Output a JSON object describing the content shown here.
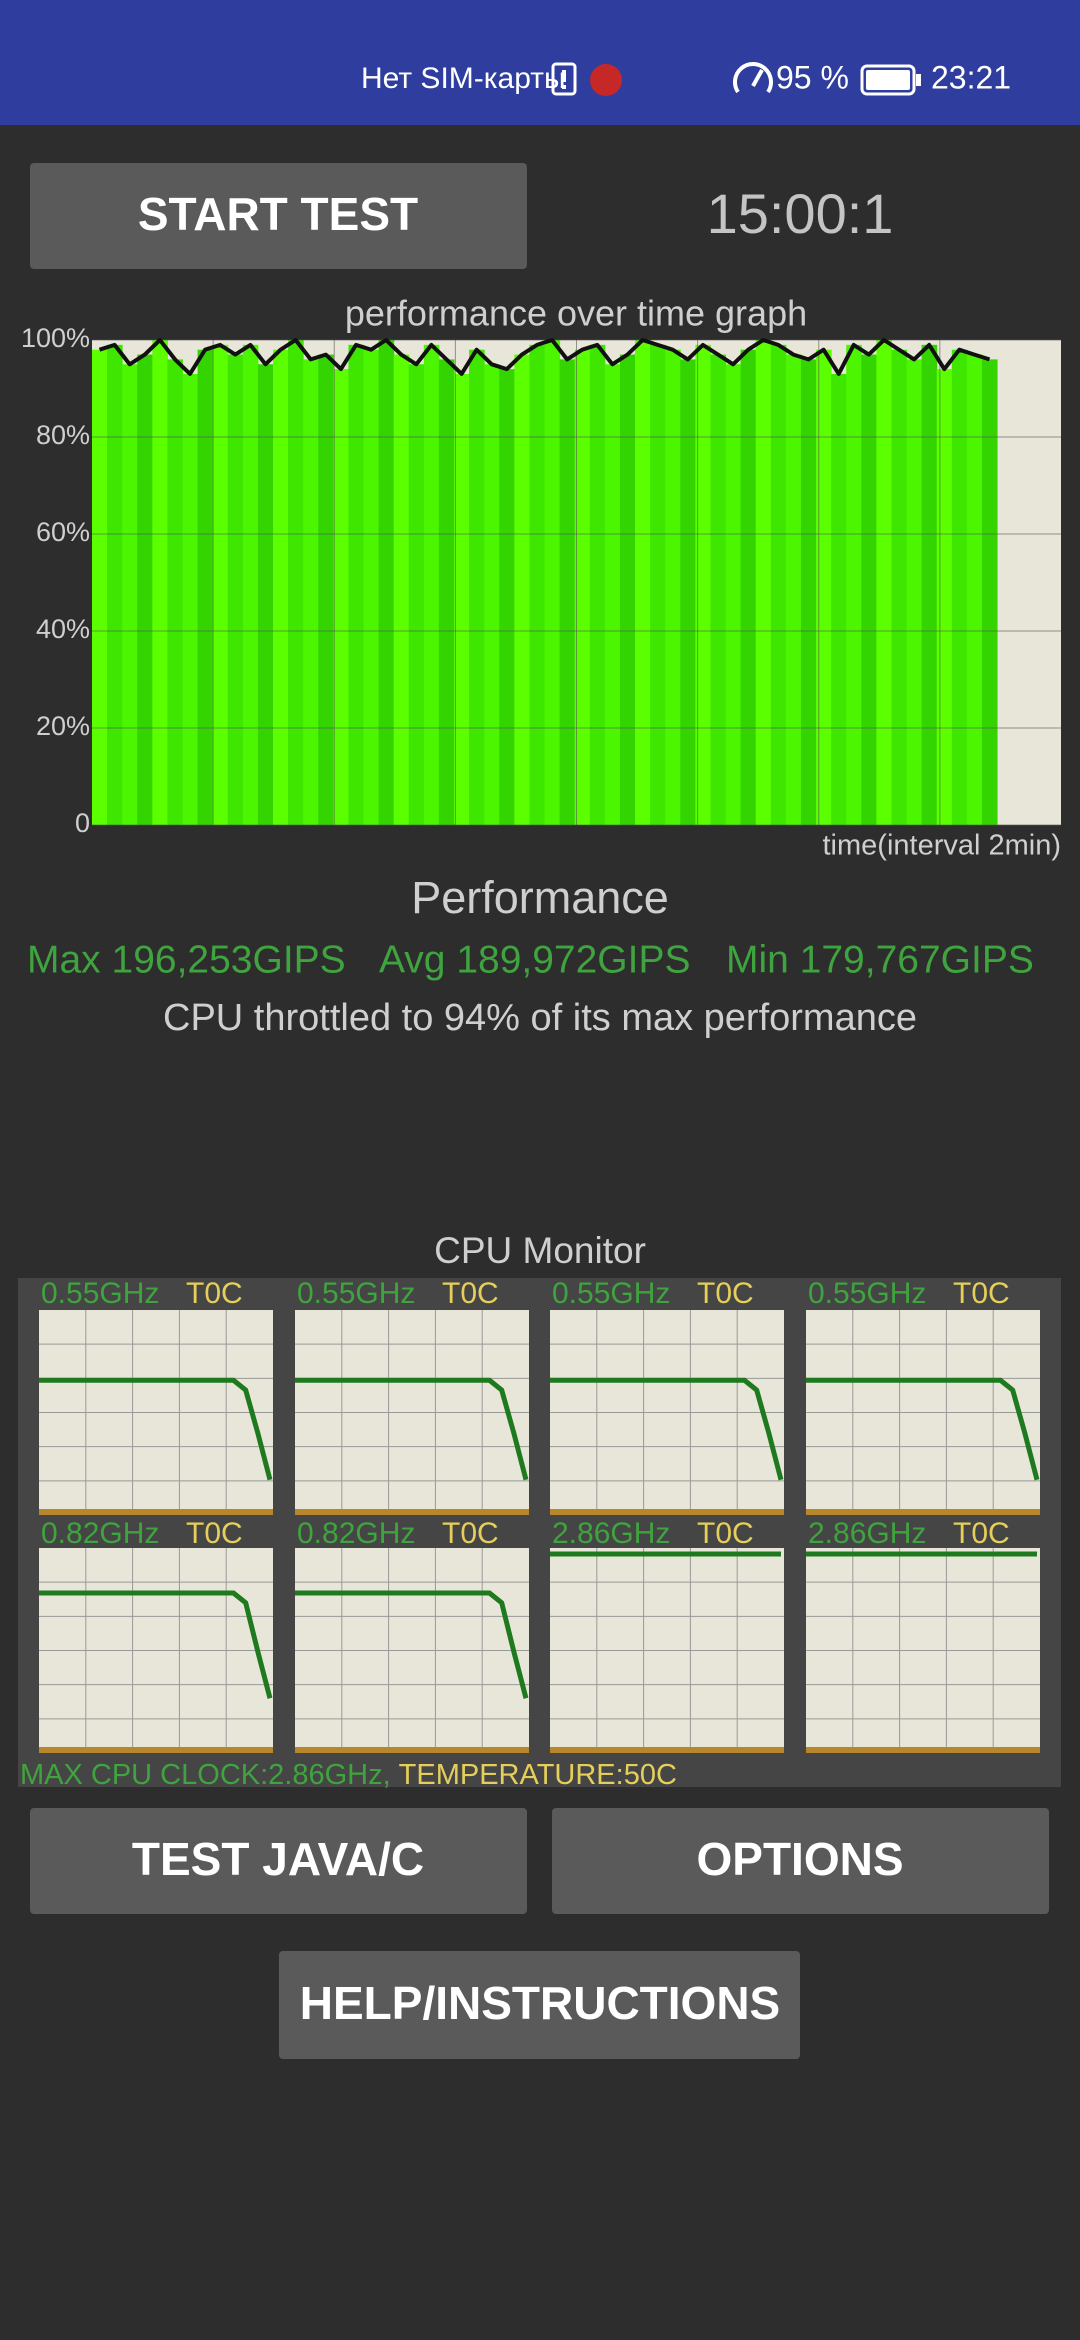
{
  "status_bar": {
    "carrier": "Нет SIM-карты",
    "battery": "95 %",
    "time": "23:21"
  },
  "buttons": {
    "start": "START TEST",
    "java": "TEST JAVA/C",
    "options": "OPTIONS",
    "help": "HELP/INSTRUCTIONS"
  },
  "timer": "15:00:1",
  "graph": {
    "title": "performance over time graph",
    "x_label": "time(interval 2min)",
    "ylim": [
      0,
      100
    ],
    "yticks": [
      0,
      {
        "value": 20,
        "label": "20%"
      },
      {
        "value": 40,
        "label": "40%"
      },
      {
        "value": 60,
        "label": "60%"
      },
      {
        "value": 80,
        "label": "80%"
      },
      {
        "value": 100,
        "label": "100%"
      }
    ],
    "values": [
      98,
      99,
      95,
      97,
      100,
      96,
      93,
      98,
      99,
      97,
      99,
      95,
      98,
      100,
      96,
      97,
      94,
      99,
      98,
      100,
      97,
      95,
      99,
      96,
      93,
      98,
      95,
      94,
      97,
      99,
      100,
      96,
      98,
      99,
      95,
      97,
      100,
      99,
      98,
      96,
      99,
      97,
      95,
      98,
      100,
      99,
      97,
      96,
      98,
      93,
      99,
      97,
      100,
      98,
      96,
      99,
      94,
      98,
      97,
      96
    ]
  },
  "performance": {
    "title": "Performance",
    "max": "Max 196,253GIPS",
    "avg": "Avg 189,972GIPS",
    "min": "Min 179,767GIPS",
    "throttle": "CPU throttled to 94% of its max performance"
  },
  "cpu_monitor": {
    "title": "CPU Monitor",
    "cores": [
      {
        "freq": "0.55GHz",
        "temp": "T0C",
        "values": [
          67,
          67,
          67,
          67,
          67,
          67,
          67,
          67,
          67,
          67,
          67,
          67,
          67,
          67,
          67,
          67,
          67,
          62,
          40,
          16
        ]
      },
      {
        "freq": "0.55GHz",
        "temp": "T0C",
        "values": [
          67,
          67,
          67,
          67,
          67,
          67,
          67,
          67,
          67,
          67,
          67,
          67,
          67,
          67,
          67,
          67,
          67,
          62,
          40,
          16
        ]
      },
      {
        "freq": "0.55GHz",
        "temp": "T0C",
        "values": [
          67,
          67,
          67,
          67,
          67,
          67,
          67,
          67,
          67,
          67,
          67,
          67,
          67,
          67,
          67,
          67,
          67,
          62,
          40,
          16
        ]
      },
      {
        "freq": "0.55GHz",
        "temp": "T0C",
        "values": [
          67,
          67,
          67,
          67,
          67,
          67,
          67,
          67,
          67,
          67,
          67,
          67,
          67,
          67,
          67,
          67,
          67,
          62,
          40,
          16
        ]
      },
      {
        "freq": "0.82GHz",
        "temp": "T0C",
        "values": [
          80,
          80,
          80,
          80,
          80,
          80,
          80,
          80,
          80,
          80,
          80,
          80,
          80,
          80,
          80,
          80,
          80,
          75,
          50,
          26
        ]
      },
      {
        "freq": "0.82GHz",
        "temp": "T0C",
        "values": [
          80,
          80,
          80,
          80,
          80,
          80,
          80,
          80,
          80,
          80,
          80,
          80,
          80,
          80,
          80,
          80,
          80,
          75,
          50,
          26
        ]
      },
      {
        "freq": "2.86GHz",
        "temp": "T0C",
        "values": [
          100,
          100
        ]
      },
      {
        "freq": "2.86GHz",
        "temp": "T0C",
        "values": [
          100,
          100
        ]
      }
    ],
    "max_clock": "MAX CPU CLOCK:2.86GHz,",
    "temperature": "TEMPERATURE:50C"
  }
}
